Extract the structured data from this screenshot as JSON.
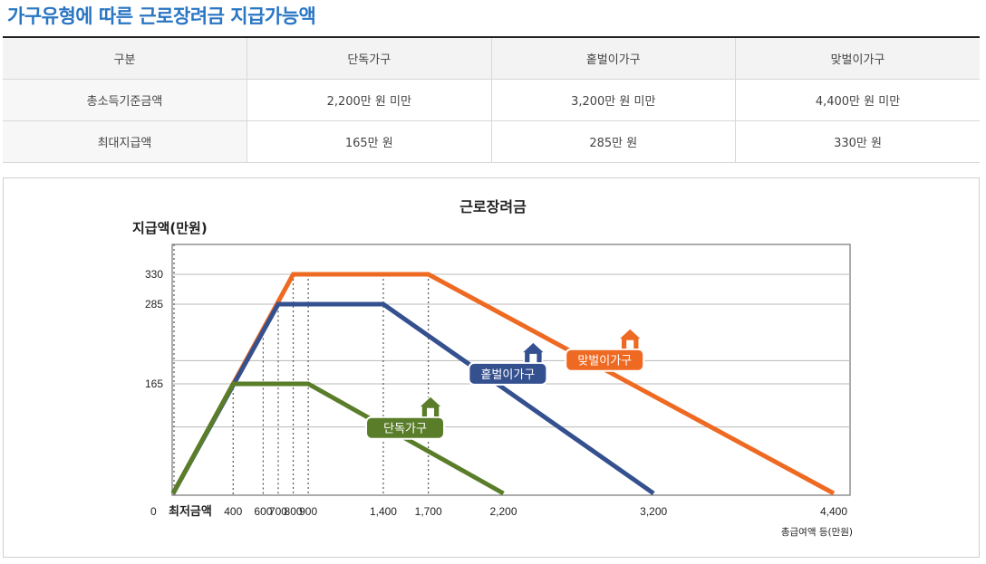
{
  "title": "가구유형에 따른 근로장려금 지급가능액",
  "table": {
    "headers": [
      "구분",
      "단독가구",
      "홑벌이가구",
      "맞벌이가구"
    ],
    "rows": [
      [
        "총소득기준금액",
        "2,200만 원 미만",
        "3,200만 원 미만",
        "4,400만 원 미만"
      ],
      [
        "최대지급액",
        "165만 원",
        "285만 원",
        "330만 원"
      ]
    ]
  },
  "chart_data": {
    "type": "line",
    "title": "근로장려금",
    "ylabel": "지급액(만원)",
    "xlabel": "총급여액 등(만원)",
    "x_origin_label": "0",
    "x_min_label": "최저금액",
    "xlim": [
      0,
      4400
    ],
    "ylim": [
      0,
      400
    ],
    "y_ticks": [
      165,
      285,
      330
    ],
    "y_grid": [
      100,
      165,
      200,
      285,
      330
    ],
    "x_ticks": [
      400,
      600,
      700,
      800,
      900,
      1400,
      1700,
      2200,
      3200,
      4400
    ],
    "x_tick_labels": [
      "400",
      "600",
      "700",
      "800",
      "900",
      "1,400",
      "1,700",
      "2,200",
      "3,200",
      "4,400"
    ],
    "dotted_x": [
      400,
      600,
      700,
      800,
      900,
      1400,
      1700
    ],
    "series": [
      {
        "name": "맞벌이가구",
        "color": "#ee6a22",
        "icon": "house-icon",
        "x": [
          0,
          800,
          1700,
          4400
        ],
        "y": [
          0,
          330,
          330,
          0
        ]
      },
      {
        "name": "홑벌이가구",
        "color": "#34508f",
        "icon": "house-icon",
        "x": [
          0,
          700,
          1400,
          3200
        ],
        "y": [
          0,
          285,
          285,
          0
        ]
      },
      {
        "name": "단독가구",
        "color": "#5a7d2a",
        "icon": "house-icon",
        "x": [
          0,
          400,
          900,
          2200
        ],
        "y": [
          0,
          165,
          165,
          0
        ]
      }
    ]
  }
}
